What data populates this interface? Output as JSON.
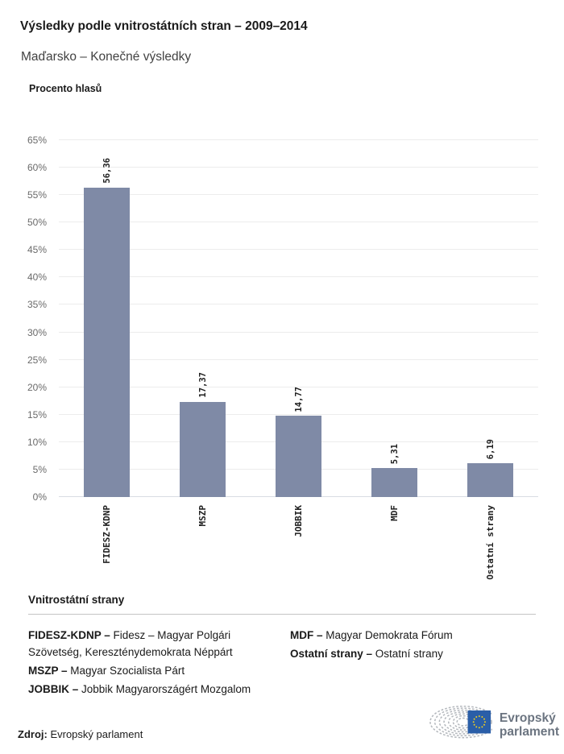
{
  "header": {
    "title": "Výsledky podle vnitrostátních stran – 2009–2014",
    "subtitle": "Maďarsko – Konečné výsledky"
  },
  "chart_data": {
    "type": "bar",
    "title": "Výsledky podle vnitrostátních stran – 2009–2014",
    "ylabel": "Procento hlasů",
    "xlabel": "",
    "categories": [
      "FIDESZ-KDNP",
      "MSZP",
      "JOBBIK",
      "MDF",
      "Ostatní strany"
    ],
    "values": [
      56.36,
      17.37,
      14.77,
      5.31,
      6.19
    ],
    "value_labels": [
      "56,36",
      "17,37",
      "14,77",
      "5,31",
      "6,19"
    ],
    "ylim": [
      0,
      65
    ],
    "ytick_step": 5,
    "ytick_labels": [
      "0%",
      "5%",
      "10%",
      "15%",
      "20%",
      "25%",
      "30%",
      "35%",
      "40%",
      "45%",
      "50%",
      "55%",
      "60%",
      "65%"
    ],
    "grid": true,
    "legend_position": "none",
    "bar_color": "#7f8aa6"
  },
  "legend": {
    "heading": "Vnitrostátní strany",
    "columns": [
      [
        {
          "abbr": "FIDESZ-KDNP –",
          "desc": "Fidesz – Magyar Polgári Szövetség, Kereszténydemokrata Néppárt"
        },
        {
          "abbr": "MSZP –",
          "desc": "Magyar Szocialista Párt"
        },
        {
          "abbr": "JOBBIK –",
          "desc": "Jobbik Magyarországért Mozgalom"
        }
      ],
      [
        {
          "abbr": "MDF –",
          "desc": "Magyar Demokrata Fórum"
        },
        {
          "abbr": "Ostatní strany –",
          "desc": "Ostatní strany"
        }
      ]
    ]
  },
  "footer": {
    "source_label": "Zdroj:",
    "source_value": "Evropský parlament",
    "logo_text_line1": "Evropský",
    "logo_text_line2": "parlament"
  },
  "colors": {
    "bar": "#7f8aa6",
    "gridline": "#ececec",
    "axis_line": "#d9dce3",
    "flag_blue": "#2a5ea8",
    "star_yellow": "#f7d21a",
    "logo_gray": "#6b7480"
  }
}
